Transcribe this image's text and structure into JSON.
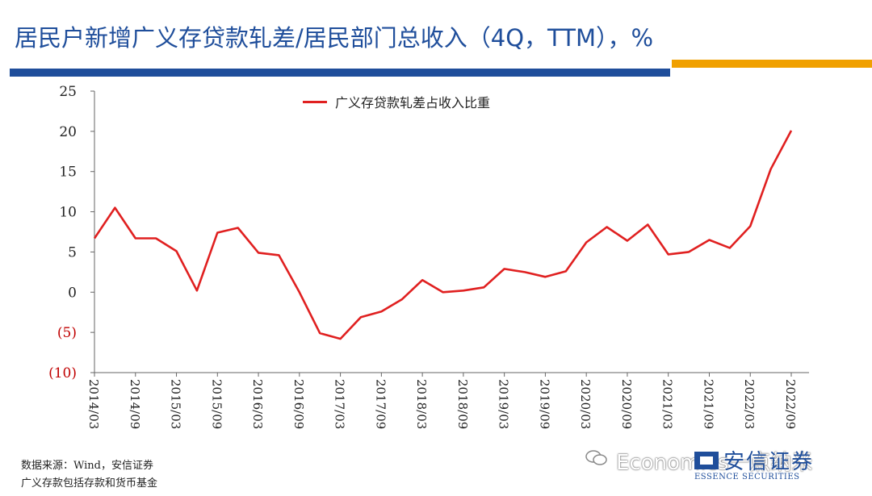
{
  "page": {
    "title": "居民户新增广义存贷款轧差/居民部门总收入（4Q，TTM），%",
    "notes": [
      "数据来源：Wind，安信证券",
      "广义存款包括存款和货币基金"
    ],
    "watermark": "Economics一点纳米",
    "logo": {
      "cn": "安信证券",
      "en": "ESSENCE SECURITIES"
    },
    "colors": {
      "brand_blue": "#1f4e9b",
      "accent_orange": "#f0a000",
      "series_red": "#e02020",
      "negative_tick_red": "#c00000"
    }
  },
  "chart_data": {
    "type": "line",
    "title": "",
    "xlabel": "",
    "ylabel": "",
    "ylim": [
      -10,
      25
    ],
    "yticks": [
      25,
      20,
      15,
      10,
      5,
      0,
      -5,
      -10
    ],
    "ytick_labels": [
      "25",
      "20",
      "15",
      "10",
      "5",
      "0",
      "(5)",
      "(10)"
    ],
    "x_tick_labels": [
      "2014/03",
      "2014/09",
      "2015/03",
      "2015/09",
      "2016/03",
      "2016/09",
      "2017/03",
      "2017/09",
      "2018/03",
      "2018/09",
      "2019/03",
      "2019/09",
      "2020/03",
      "2020/09",
      "2021/03",
      "2021/09",
      "2022/03",
      "2022/09"
    ],
    "x": [
      "2014/03",
      "2014/06",
      "2014/09",
      "2014/12",
      "2015/03",
      "2015/06",
      "2015/09",
      "2015/12",
      "2016/03",
      "2016/06",
      "2016/09",
      "2016/12",
      "2017/03",
      "2017/06",
      "2017/09",
      "2017/12",
      "2018/03",
      "2018/06",
      "2018/09",
      "2018/12",
      "2019/03",
      "2019/06",
      "2019/09",
      "2019/12",
      "2020/03",
      "2020/06",
      "2020/09",
      "2020/12",
      "2021/03",
      "2021/06",
      "2021/09",
      "2021/12",
      "2022/03",
      "2022/06",
      "2022/09"
    ],
    "series": [
      {
        "name": "广义存贷款轧差占收入比重",
        "values": [
          6.7,
          10.5,
          6.7,
          6.7,
          5.1,
          0.2,
          7.4,
          8.0,
          4.9,
          4.6,
          0.0,
          -5.1,
          -5.8,
          -3.1,
          -2.4,
          -0.9,
          1.5,
          0.0,
          0.2,
          0.6,
          2.9,
          2.5,
          1.9,
          2.6,
          6.2,
          8.1,
          6.4,
          8.4,
          4.7,
          5.0,
          6.5,
          5.5,
          8.2,
          15.3,
          20.1
        ]
      }
    ],
    "grid": false,
    "legend_position": "top-center"
  }
}
